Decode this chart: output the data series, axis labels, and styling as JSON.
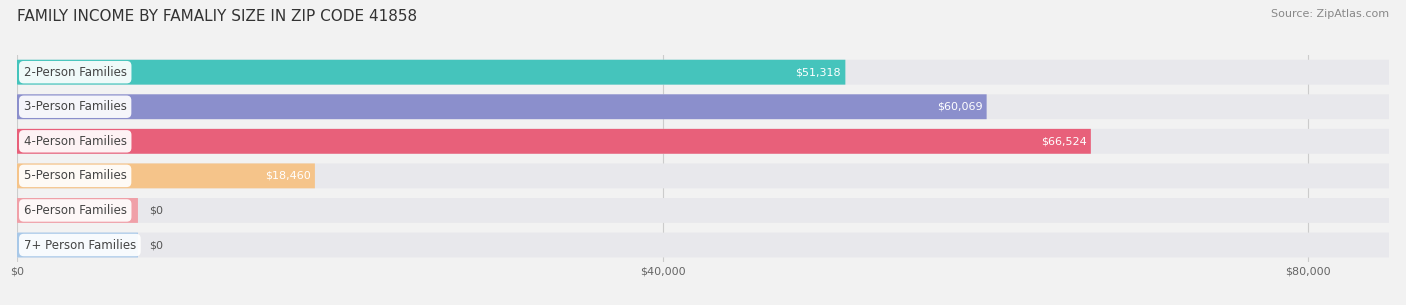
{
  "title": "FAMILY INCOME BY FAMALIY SIZE IN ZIP CODE 41858",
  "source": "Source: ZipAtlas.com",
  "categories": [
    "2-Person Families",
    "3-Person Families",
    "4-Person Families",
    "5-Person Families",
    "6-Person Families",
    "7+ Person Families"
  ],
  "values": [
    51318,
    60069,
    66524,
    18460,
    0,
    0
  ],
  "bar_colors": [
    "#45C4BC",
    "#8B8FCC",
    "#E8607A",
    "#F5C48A",
    "#F0A0A8",
    "#A8C8E8"
  ],
  "label_colors": [
    "#ffffff",
    "#ffffff",
    "#ffffff",
    "#777777",
    "#777777",
    "#777777"
  ],
  "xmax": 85000,
  "xticks": [
    0,
    40000,
    80000
  ],
  "xticklabels": [
    "$0",
    "$40,000",
    "$80,000"
  ],
  "background_color": "#f2f2f2",
  "bar_bg_color": "#e8e8ec",
  "title_fontsize": 11,
  "label_fontsize": 8.5,
  "value_fontsize": 8,
  "source_fontsize": 8,
  "bar_height": 0.72,
  "zero_bar_width": 7500
}
